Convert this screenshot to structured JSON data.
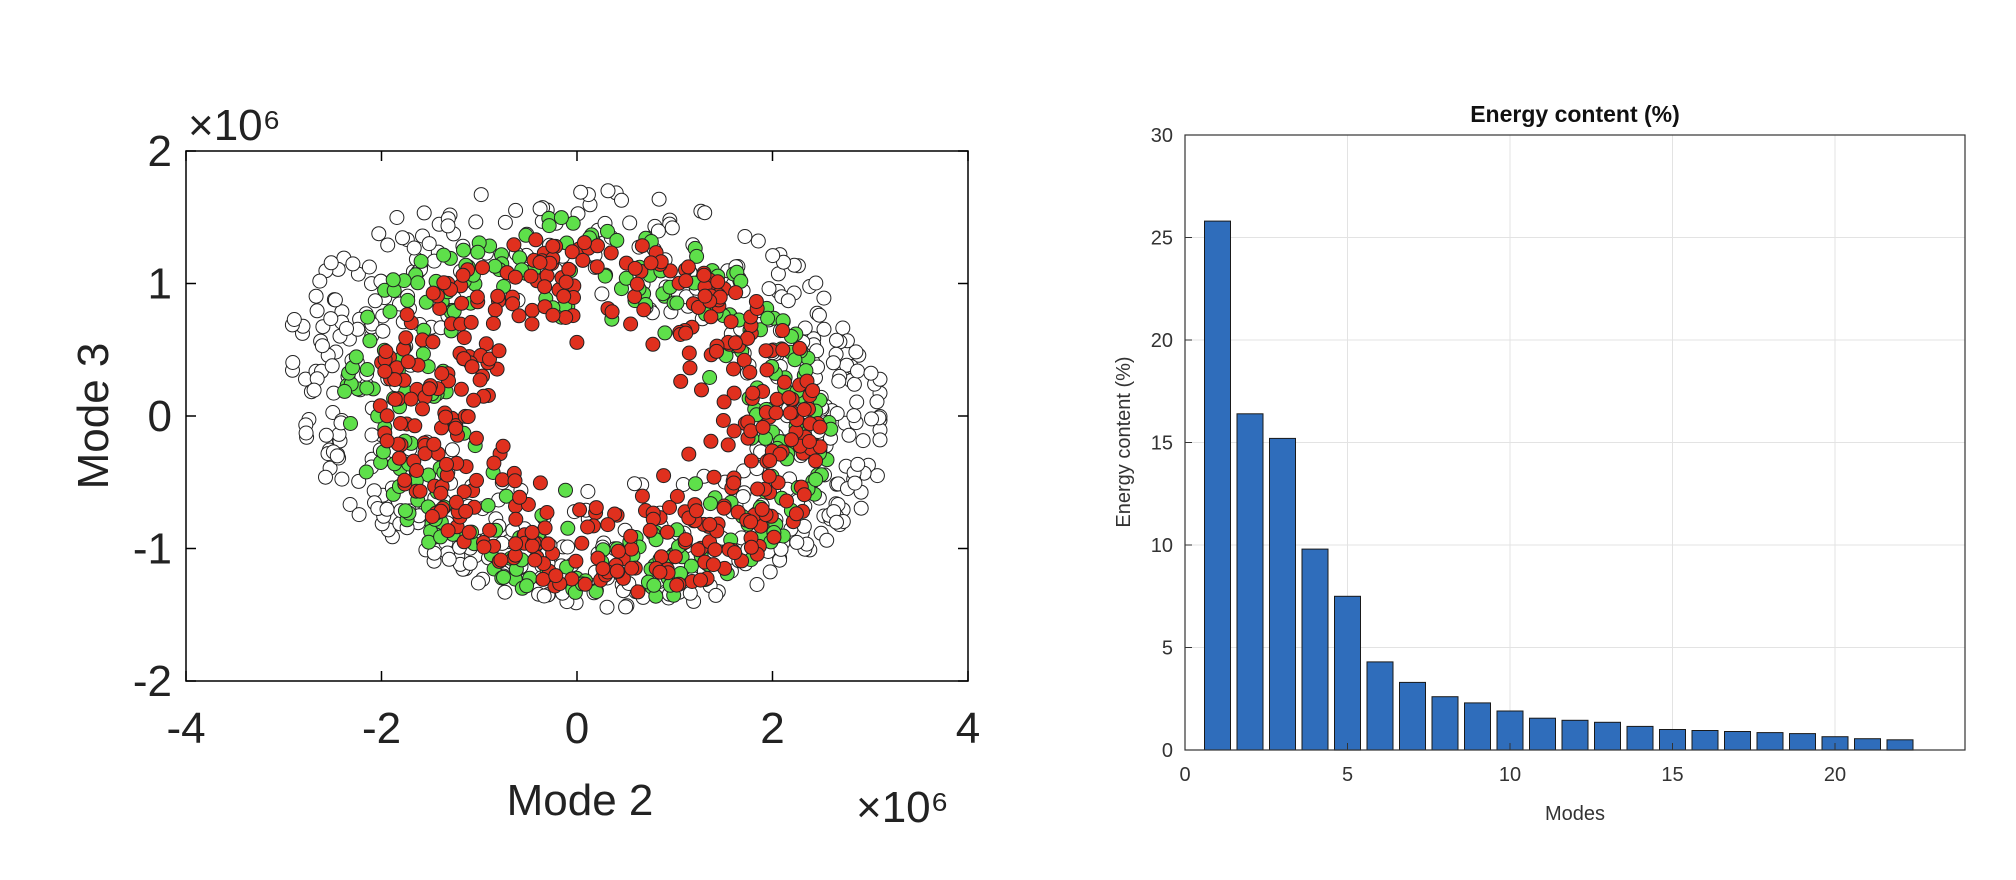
{
  "chart_data": [
    {
      "type": "scatter",
      "title": "",
      "xlabel": "Mode 2",
      "ylabel": "Mode 3",
      "x_exponent": "×10⁶",
      "y_exponent": "×10⁶",
      "xlim": [
        -4,
        4
      ],
      "ylim": [
        -2,
        2
      ],
      "xticks": [
        "-4",
        "-2",
        "0",
        "2",
        "4"
      ],
      "yticks": [
        "-2",
        "-1",
        "0",
        "1",
        "2"
      ],
      "grid": false,
      "colors": {
        "white": "#ffffff",
        "green": "#5ee04a",
        "red": "#e0301e",
        "edge": "#222222"
      },
      "series": [
        {
          "color": "white",
          "shape": "ring",
          "cx": 0.1,
          "cy": 0.15,
          "rx": [
            1.8,
            3.1
          ],
          "ry": [
            0.55,
            1.6
          ],
          "count": 520
        },
        {
          "color": "green",
          "shape": "ring",
          "cx": 0.1,
          "cy": 0.05,
          "rx": [
            1.3,
            2.5
          ],
          "ry": [
            0.6,
            1.45
          ],
          "count": 300
        },
        {
          "color": "red",
          "shape": "ring",
          "cx": 0.25,
          "cy": 0.0,
          "rx": [
            0.9,
            2.3
          ],
          "ry": [
            0.5,
            1.35
          ],
          "count": 430
        }
      ]
    },
    {
      "type": "bar",
      "title": "Energy content (%)",
      "xlabel": "Modes",
      "ylabel": "Energy content (%)",
      "xlim": [
        0,
        24
      ],
      "ylim": [
        0,
        30
      ],
      "xticks": [
        0,
        5,
        10,
        15,
        20
      ],
      "yticks": [
        0,
        5,
        10,
        15,
        20,
        25,
        30
      ],
      "grid": true,
      "bar_color": "#2f6dbb",
      "categories": [
        1,
        2,
        3,
        4,
        5,
        6,
        7,
        8,
        9,
        10,
        11,
        12,
        13,
        14,
        15,
        16,
        17,
        18,
        19,
        20,
        21,
        22
      ],
      "values": [
        25.8,
        16.4,
        15.2,
        9.8,
        7.5,
        4.3,
        3.3,
        2.6,
        2.3,
        1.9,
        1.55,
        1.45,
        1.35,
        1.15,
        1.0,
        0.95,
        0.9,
        0.85,
        0.8,
        0.65,
        0.55,
        0.5
      ]
    }
  ]
}
